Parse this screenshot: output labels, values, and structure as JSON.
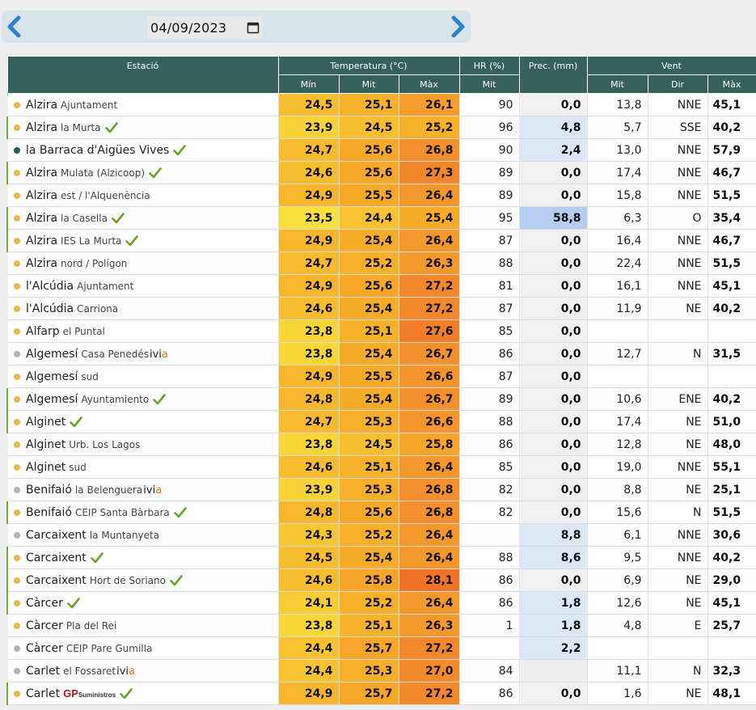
{
  "date": {
    "value": "04/09/2023",
    "prev_label": "previous day",
    "next_label": "next day"
  },
  "headers": {
    "station": "Estació",
    "temperature": "Temperatura (°C)",
    "humidity": "HR (%)",
    "precipitation": "Prec. (mm)",
    "wind": "Vent",
    "min": "Mín",
    "mit": "Mit",
    "max": "Màx",
    "hr_mit": "Mit",
    "wind_mit": "Mit",
    "wind_dir": "Dir",
    "wind_max": "Màx"
  },
  "colors": {
    "header_bg": "#36605b",
    "dot_yellow": "#e7b84b",
    "dot_gray": "#b3b3b3",
    "dot_teal": "#1f5f5b",
    "check_green": "#6aa12a",
    "row_bar_green": "#7aa83a"
  },
  "rows": [
    {
      "dot": "yellow",
      "bar": false,
      "name": "Alzira",
      "detail": "Ajuntament",
      "badge": "none",
      "tmin": "24,5",
      "tmit": "25,1",
      "tmax": "26,1",
      "hr": "90",
      "prec": "0,0",
      "wmit": "13,8",
      "wdir": "NNE",
      "wmax": "45,1"
    },
    {
      "dot": "yellow",
      "bar": true,
      "name": "Alzira",
      "detail": "la Murta",
      "badge": "check",
      "tmin": "23,9",
      "tmit": "24,5",
      "tmax": "25,2",
      "hr": "96",
      "prec": "4,8",
      "wmit": "5,7",
      "wdir": "SSE",
      "wmax": "40,2"
    },
    {
      "dot": "teal",
      "bar": false,
      "name": "la Barraca d'Aigües Vives",
      "detail": "",
      "badge": "check",
      "tmin": "24,7",
      "tmit": "25,6",
      "tmax": "26,8",
      "hr": "90",
      "prec": "2,4",
      "wmit": "13,0",
      "wdir": "NNE",
      "wmax": "57,9"
    },
    {
      "dot": "yellow",
      "bar": true,
      "name": "Alzira",
      "detail": "Mulata (Alzicoop)",
      "badge": "check",
      "tmin": "24,6",
      "tmit": "25,6",
      "tmax": "27,3",
      "hr": "89",
      "prec": "0,0",
      "wmit": "17,4",
      "wdir": "NNE",
      "wmax": "46,7"
    },
    {
      "dot": "yellow",
      "bar": false,
      "name": "Alzira",
      "detail": "est / l'Alquenència",
      "badge": "none",
      "tmin": "24,9",
      "tmit": "25,5",
      "tmax": "26,4",
      "hr": "89",
      "prec": "0,0",
      "wmit": "15,8",
      "wdir": "NNE",
      "wmax": "51,5"
    },
    {
      "dot": "yellow",
      "bar": true,
      "name": "Alzira",
      "detail": "la Casella",
      "badge": "check",
      "tmin": "23,5",
      "tmit": "24,4",
      "tmax": "25,4",
      "hr": "95",
      "prec": "58,8",
      "wmit": "6,3",
      "wdir": "O",
      "wmax": "35,4"
    },
    {
      "dot": "yellow",
      "bar": true,
      "name": "Alzira",
      "detail": "IES La Murta",
      "badge": "check",
      "tmin": "24,9",
      "tmit": "25,4",
      "tmax": "26,4",
      "hr": "87",
      "prec": "0,0",
      "wmit": "16,4",
      "wdir": "NNE",
      "wmax": "46,7"
    },
    {
      "dot": "yellow",
      "bar": false,
      "name": "Alzira",
      "detail": "nord / Polígon",
      "badge": "none",
      "tmin": "24,7",
      "tmit": "25,2",
      "tmax": "26,3",
      "hr": "88",
      "prec": "0,0",
      "wmit": "22,4",
      "wdir": "NNE",
      "wmax": "51,5"
    },
    {
      "dot": "yellow",
      "bar": false,
      "name": "l'Alcúdia",
      "detail": "Ajuntament",
      "badge": "none",
      "tmin": "24,9",
      "tmit": "25,6",
      "tmax": "27,2",
      "hr": "81",
      "prec": "0,0",
      "wmit": "16,1",
      "wdir": "NNE",
      "wmax": "45,1"
    },
    {
      "dot": "yellow",
      "bar": false,
      "name": "l'Alcúdia",
      "detail": "Carriona",
      "badge": "none",
      "tmin": "24,6",
      "tmit": "25,4",
      "tmax": "27,2",
      "hr": "87",
      "prec": "0,0",
      "wmit": "11,9",
      "wdir": "NE",
      "wmax": "40,2"
    },
    {
      "dot": "yellow",
      "bar": false,
      "name": "Alfarp",
      "detail": "el Puntal",
      "badge": "none",
      "tmin": "23,8",
      "tmit": "25,1",
      "tmax": "27,6",
      "hr": "85",
      "prec": "0,0",
      "wmit": "",
      "wdir": "",
      "wmax": ""
    },
    {
      "dot": "gray",
      "bar": false,
      "name": "Algemesí",
      "detail": "Casa Penedés",
      "badge": "ivia",
      "tmin": "23,8",
      "tmit": "25,4",
      "tmax": "26,7",
      "hr": "86",
      "prec": "0,0",
      "wmit": "12,7",
      "wdir": "N",
      "wmax": "31,5"
    },
    {
      "dot": "yellow",
      "bar": false,
      "name": "Algemesí",
      "detail": "sud",
      "badge": "none",
      "tmin": "24,9",
      "tmit": "25,5",
      "tmax": "26,6",
      "hr": "87",
      "prec": "0,0",
      "wmit": "",
      "wdir": "",
      "wmax": ""
    },
    {
      "dot": "yellow",
      "bar": true,
      "name": "Algemesí",
      "detail": "Ayuntamiento",
      "badge": "check",
      "tmin": "24,8",
      "tmit": "25,4",
      "tmax": "26,7",
      "hr": "89",
      "prec": "0,0",
      "wmit": "10,6",
      "wdir": "ENE",
      "wmax": "40,2"
    },
    {
      "dot": "yellow",
      "bar": true,
      "name": "Alginet",
      "detail": "",
      "badge": "check",
      "tmin": "24,7",
      "tmit": "25,3",
      "tmax": "26,6",
      "hr": "88",
      "prec": "0,0",
      "wmit": "17,4",
      "wdir": "NE",
      "wmax": "51,0"
    },
    {
      "dot": "yellow",
      "bar": false,
      "name": "Alginet",
      "detail": "Urb. Los Lagos",
      "badge": "none",
      "tmin": "23,8",
      "tmit": "24,5",
      "tmax": "25,8",
      "hr": "86",
      "prec": "0,0",
      "wmit": "12,8",
      "wdir": "NE",
      "wmax": "48,0"
    },
    {
      "dot": "yellow",
      "bar": false,
      "name": "Alginet",
      "detail": "sud",
      "badge": "none",
      "tmin": "24,6",
      "tmit": "25,1",
      "tmax": "26,4",
      "hr": "85",
      "prec": "0,0",
      "wmit": "19,0",
      "wdir": "NNE",
      "wmax": "55,1"
    },
    {
      "dot": "gray",
      "bar": false,
      "name": "Benifaió",
      "detail": "la Belenguera",
      "badge": "ivia",
      "tmin": "23,9",
      "tmit": "25,3",
      "tmax": "26,8",
      "hr": "82",
      "prec": "0,0",
      "wmit": "8,8",
      "wdir": "NE",
      "wmax": "25,1"
    },
    {
      "dot": "yellow",
      "bar": true,
      "name": "Benifaió",
      "detail": "CEIP Santa Bàrbara",
      "badge": "check",
      "tmin": "24,8",
      "tmit": "25,6",
      "tmax": "26,8",
      "hr": "82",
      "prec": "0,0",
      "wmit": "15,6",
      "wdir": "N",
      "wmax": "51,5"
    },
    {
      "dot": "gray",
      "bar": false,
      "name": "Carcaixent",
      "detail": "la Muntanyeta",
      "badge": "none",
      "tmin": "24,3",
      "tmit": "25,2",
      "tmax": "26,4",
      "hr": "",
      "prec": "8,8",
      "wmit": "6,1",
      "wdir": "NNE",
      "wmax": "30,6"
    },
    {
      "dot": "yellow",
      "bar": true,
      "name": "Carcaixent",
      "detail": "",
      "badge": "check",
      "tmin": "24,5",
      "tmit": "25,4",
      "tmax": "26,4",
      "hr": "88",
      "prec": "8,6",
      "wmit": "9,5",
      "wdir": "NNE",
      "wmax": "40,2"
    },
    {
      "dot": "yellow",
      "bar": true,
      "name": "Carcaixent",
      "detail": "Hort de Soriano",
      "badge": "check",
      "tmin": "24,6",
      "tmit": "25,8",
      "tmax": "28,1",
      "hr": "86",
      "prec": "0,0",
      "wmit": "6,9",
      "wdir": "NE",
      "wmax": "29,0"
    },
    {
      "dot": "yellow",
      "bar": true,
      "name": "Càrcer",
      "detail": "",
      "badge": "check",
      "tmin": "24,1",
      "tmit": "25,2",
      "tmax": "26,4",
      "hr": "86",
      "prec": "1,8",
      "wmit": "12,6",
      "wdir": "NE",
      "wmax": "45,1"
    },
    {
      "dot": "yellow",
      "bar": false,
      "name": "Càrcer",
      "detail": "Pla del Rei",
      "badge": "none",
      "tmin": "23,8",
      "tmit": "25,1",
      "tmax": "26,3",
      "hr": "1",
      "prec": "1,8",
      "wmit": "4,8",
      "wdir": "E",
      "wmax": "25,7"
    },
    {
      "dot": "gray",
      "bar": false,
      "name": "Càrcer",
      "detail": "CEIP Pare Gumilla",
      "badge": "none",
      "tmin": "24,4",
      "tmit": "25,7",
      "tmax": "27,2",
      "hr": "",
      "prec": "2,2",
      "wmit": "",
      "wdir": "",
      "wmax": ""
    },
    {
      "dot": "gray",
      "bar": false,
      "name": "Carlet",
      "detail": "el Fossaret",
      "badge": "ivia",
      "tmin": "24,4",
      "tmit": "25,3",
      "tmax": "27,0",
      "hr": "84",
      "prec": "",
      "wmit": "11,1",
      "wdir": "N",
      "wmax": "32,3"
    },
    {
      "dot": "yellow",
      "bar": true,
      "name": "Carlet",
      "detail": "",
      "badge": "gp",
      "tmin": "24,9",
      "tmit": "25,7",
      "tmax": "27,2",
      "hr": "86",
      "prec": "0,0",
      "wmit": "1,6",
      "wdir": "NE",
      "wmax": "48,1"
    }
  ]
}
